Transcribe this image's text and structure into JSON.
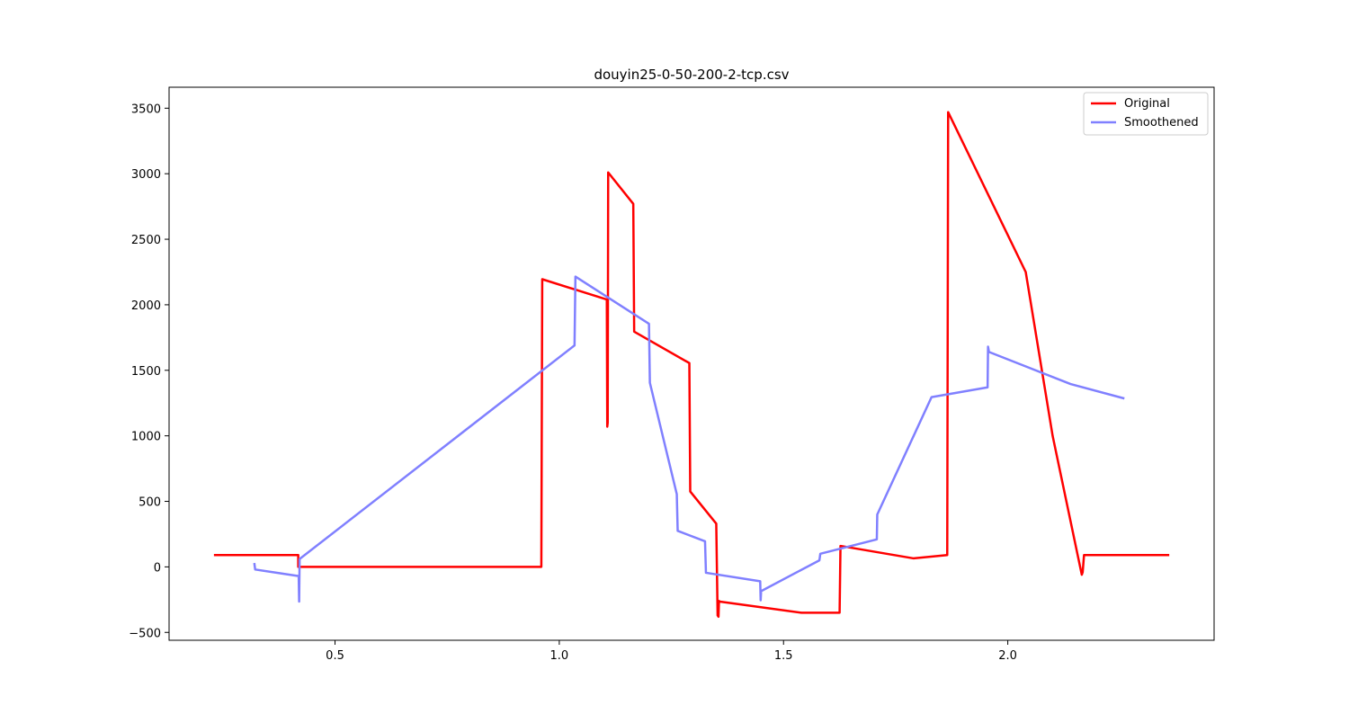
{
  "chart_data": {
    "type": "line",
    "title": "douyin25-0-50-200-2-tcp.csv",
    "xlabel": "",
    "ylabel": "",
    "xlim": [
      0.13,
      2.46
    ],
    "ylim": [
      -560,
      3660
    ],
    "xticks": [
      0.5,
      1.0,
      1.5,
      2.0
    ],
    "xtick_labels": [
      "0.5",
      "1.0",
      "1.5",
      "2.0"
    ],
    "yticks": [
      -500,
      0,
      500,
      1000,
      1500,
      2000,
      2500,
      3000,
      3500
    ],
    "ytick_labels": [
      "−500",
      "0",
      "500",
      "1000",
      "1500",
      "2000",
      "2500",
      "3000",
      "3500"
    ],
    "grid": false,
    "legend_position": "top-right",
    "series": [
      {
        "name": "Original",
        "color": "#ff0000",
        "x": [
          0.23,
          0.418,
          0.418,
          0.96,
          0.962,
          1.106,
          1.107,
          1.108,
          1.109,
          1.165,
          1.167,
          1.29,
          1.292,
          1.35,
          1.353,
          1.355,
          1.356,
          1.358,
          1.54,
          1.625,
          1.627,
          1.79,
          1.865,
          1.867,
          2.04,
          2.1,
          2.165,
          2.167,
          2.17,
          2.36
        ],
        "y": [
          90,
          90,
          0,
          0,
          2195,
          2040,
          1070,
          1100,
          3010,
          2770,
          1795,
          1555,
          575,
          330,
          -370,
          -380,
          -260,
          -265,
          -350,
          -350,
          160,
          65,
          90,
          3470,
          2250,
          1000,
          -60,
          -40,
          90,
          90
        ]
      },
      {
        "name": "Smoothened",
        "color": "#8080ff",
        "x": [
          0.32,
          0.322,
          0.419,
          0.42,
          0.421,
          1.034,
          1.036,
          1.2,
          1.202,
          1.262,
          1.264,
          1.325,
          1.327,
          1.448,
          1.449,
          1.45,
          1.58,
          1.582,
          1.708,
          1.709,
          1.83,
          1.955,
          1.956,
          1.958,
          2.14,
          2.26
        ],
        "y": [
          30,
          -20,
          -70,
          -265,
          60,
          1690,
          2215,
          1855,
          1405,
          555,
          275,
          195,
          -45,
          -110,
          -255,
          -185,
          50,
          100,
          210,
          400,
          1295,
          1370,
          1680,
          1640,
          1395,
          1285
        ]
      }
    ]
  }
}
